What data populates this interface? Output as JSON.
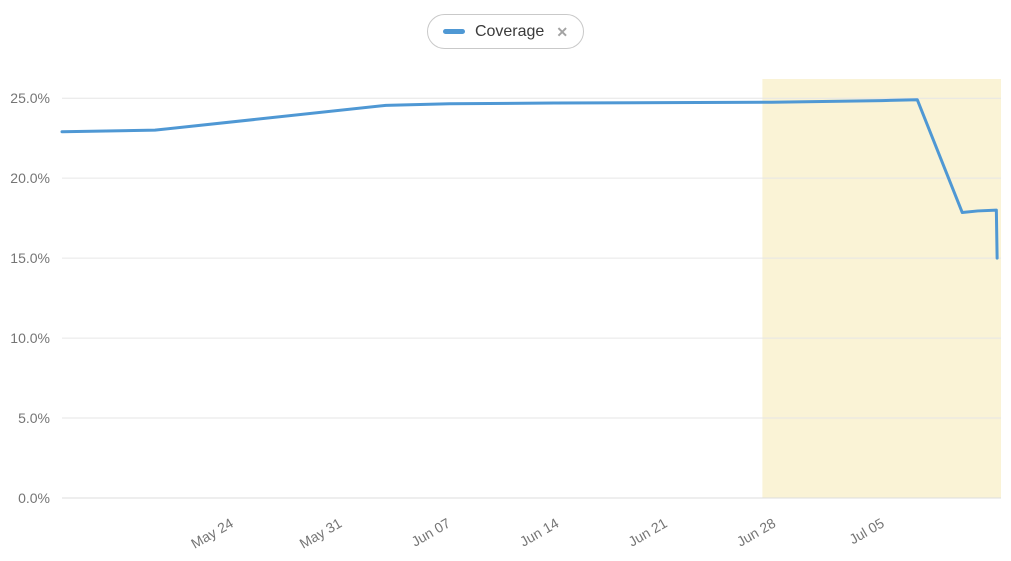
{
  "page": {
    "background": "#ffffff"
  },
  "legend": {
    "position": "top-center",
    "items": [
      {
        "label": "Coverage",
        "color": "#4f98d4",
        "close_icon": "✕",
        "removable": true
      }
    ]
  },
  "chart_data": {
    "type": "line",
    "title": "",
    "xlabel": "",
    "ylabel": "",
    "grid": true,
    "legend_position": "top-center",
    "x_axis": {
      "unit": "date",
      "domain_days": [
        0,
        60.6
      ],
      "start_date": "May 13",
      "ticks": [
        {
          "label": "May 24",
          "day": 11
        },
        {
          "label": "May 31",
          "day": 18
        },
        {
          "label": "Jun 07",
          "day": 25
        },
        {
          "label": "Jun 14",
          "day": 32
        },
        {
          "label": "Jun 21",
          "day": 39
        },
        {
          "label": "Jun 28",
          "day": 46
        },
        {
          "label": "Jul 05",
          "day": 53
        }
      ]
    },
    "y_axis": {
      "domain": [
        0,
        26.2
      ],
      "ticks": [
        {
          "label": "0.0%",
          "value": 0
        },
        {
          "label": "5.0%",
          "value": 5
        },
        {
          "label": "10.0%",
          "value": 10
        },
        {
          "label": "15.0%",
          "value": 15
        },
        {
          "label": "20.0%",
          "value": 20
        },
        {
          "label": "25.0%",
          "value": 25
        }
      ]
    },
    "series": [
      {
        "name": "Coverage",
        "color": "#4f98d4",
        "stroke_width": 3,
        "points": [
          {
            "day": 0.0,
            "date": "May 13",
            "value": 22.9
          },
          {
            "day": 6.0,
            "date": "May 19",
            "value": 23.0
          },
          {
            "day": 20.9,
            "date": "Jun 03",
            "value": 24.55
          },
          {
            "day": 25.0,
            "date": "Jun 07",
            "value": 24.65
          },
          {
            "day": 31.8,
            "date": "Jun 14",
            "value": 24.7
          },
          {
            "day": 38.9,
            "date": "Jun 21",
            "value": 24.72
          },
          {
            "day": 45.8,
            "date": "Jun 28",
            "value": 24.75
          },
          {
            "day": 52.9,
            "date": "Jul 05",
            "value": 24.85
          },
          {
            "day": 55.2,
            "date": "Jul 07",
            "value": 24.9
          },
          {
            "day": 58.1,
            "date": "Jul 10",
            "value": 17.85
          },
          {
            "day": 59.1,
            "date": "Jul 11",
            "value": 17.95
          },
          {
            "day": 60.3,
            "date": "Jul 12",
            "value": 18.0
          },
          {
            "day": 60.35,
            "date": "Jul 12",
            "value": 15.0
          }
        ]
      }
    ],
    "highlight_region": {
      "start_day": 45.2,
      "end_day": 60.6,
      "start_date": "Jun 27",
      "end_date": "Jul 12",
      "color": "#faf3d6"
    },
    "colors": {
      "grid": "#e6e6e6",
      "axis_line": "#dcdcdc",
      "tick_text": "#757575"
    }
  }
}
